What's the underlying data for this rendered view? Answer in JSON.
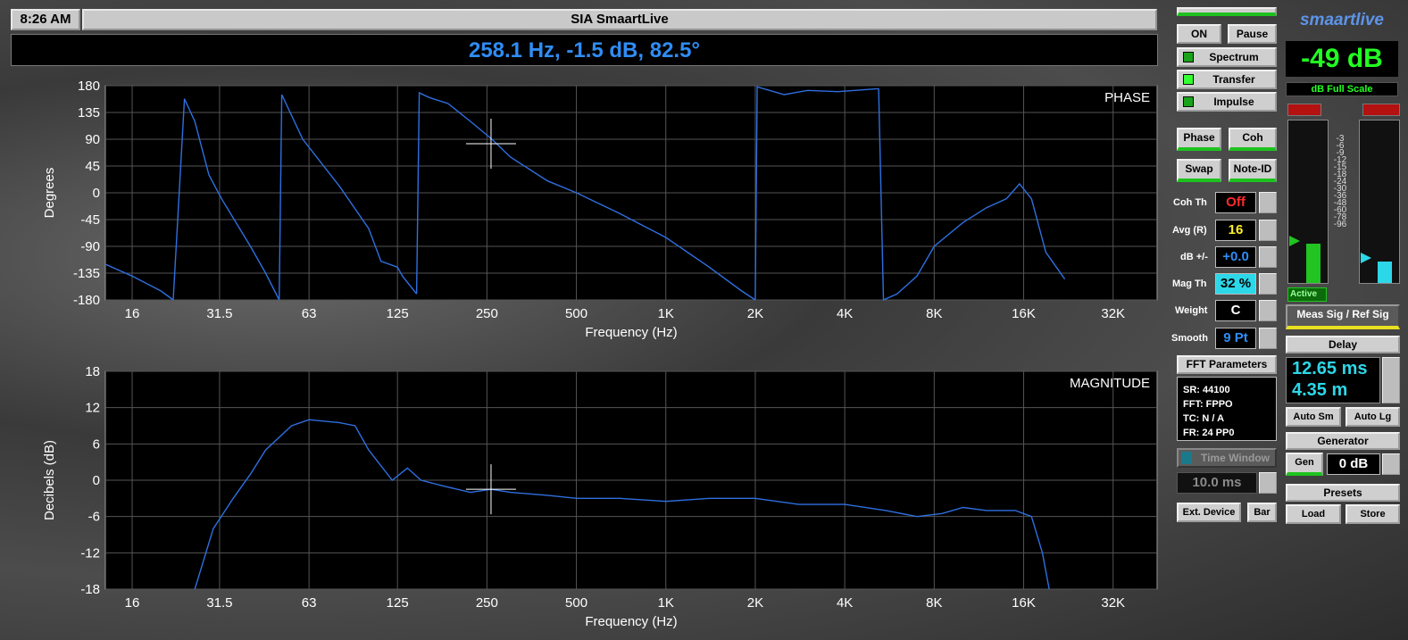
{
  "window": {
    "clock": "8:26 AM",
    "title": "SIA SmaartLive"
  },
  "cursor_readout": "258.1 Hz, -1.5 dB, 82.5°",
  "plots": {
    "phase": {
      "label": "PHASE",
      "ylabel": "Degrees",
      "xlabel": "Frequency (Hz)",
      "yticks": [
        "180",
        "135",
        "90",
        "45",
        "0",
        "-45",
        "-90",
        "-135",
        "-180"
      ],
      "xticks": [
        "16",
        "31.5",
        "63",
        "125",
        "250",
        "500",
        "1K",
        "2K",
        "4K",
        "8K",
        "16K",
        "32K"
      ]
    },
    "magnitude": {
      "label": "MAGNITUDE",
      "ylabel": "Decibels (dB)",
      "xlabel": "Frequency (Hz)",
      "yticks": [
        "18",
        "12",
        "6",
        "0",
        "-6",
        "-12",
        "-18"
      ],
      "xticks": [
        "16",
        "31.5",
        "63",
        "125",
        "250",
        "500",
        "1K",
        "2K",
        "4K",
        "8K",
        "16K",
        "32K"
      ]
    }
  },
  "controls": {
    "on": "ON",
    "pause": "Pause",
    "spectrum": "Spectrum",
    "transfer": "Transfer",
    "impulse": "Impulse",
    "phase": "Phase",
    "coh": "Coh",
    "swap": "Swap",
    "note_id": "Note-ID",
    "coh_th_label": "Coh Th",
    "coh_th_value": "Off",
    "avg_label": "Avg (R)",
    "avg_value": "16",
    "db_label": "dB +/-",
    "db_value": "+0.0",
    "mag_th_label": "Mag Th",
    "mag_th_value": "32 %",
    "weight_label": "Weight",
    "weight_value": "C",
    "smooth_label": "Smooth",
    "smooth_value": "9 Pt",
    "fft_header": "FFT Parameters",
    "fft_lines": [
      "SR: 44100",
      "FFT: FPPO",
      "TC: N / A",
      "FR: 24 PP0"
    ],
    "time_window": "Time Window",
    "time_window_value": "10.0 ms",
    "ext_device": "Ext. Device",
    "bar": "Bar"
  },
  "right_panel": {
    "logo": "smaartlive",
    "level": "-49 dB",
    "level_caption": "dB Full Scale",
    "meter_scale": [
      "-3",
      "-6",
      "-9",
      "-12",
      "-15",
      "-18",
      "-24",
      "-30",
      "-36",
      "-48",
      "-60",
      "-78",
      "-96"
    ],
    "active": "Active",
    "meas_ref": "Meas Sig / Ref Sig",
    "delay_header": "Delay",
    "delay_ms": "12.65 ms",
    "delay_m": "4.35 m",
    "auto_sm": "Auto Sm",
    "auto_lg": "Auto Lg",
    "generator_header": "Generator",
    "gen": "Gen",
    "gen_level": "0 dB",
    "presets_header": "Presets",
    "load": "Load",
    "store": "Store"
  },
  "colors": {
    "trace": "#2f6fe0",
    "readout": "#2f8df5",
    "led_green": "#34ff34"
  },
  "chart_data": [
    {
      "type": "line",
      "title": "PHASE",
      "xlabel": "Frequency (Hz)",
      "ylabel": "Degrees",
      "x_scale": "log",
      "xlim": [
        13,
        45000
      ],
      "ylim": [
        -180,
        180
      ],
      "x_tick_labels": [
        "16",
        "31.5",
        "63",
        "125",
        "250",
        "500",
        "1K",
        "2K",
        "4K",
        "8K",
        "16K",
        "32K"
      ],
      "grid": true,
      "segments": [
        [
          [
            13,
            -120
          ],
          [
            16,
            -140
          ],
          [
            20,
            -165
          ],
          [
            22,
            -180
          ]
        ],
        [
          [
            22,
            -180
          ],
          [
            24,
            158
          ],
          [
            26,
            120
          ],
          [
            29,
            30
          ],
          [
            32,
            -10
          ],
          [
            40,
            -90
          ],
          [
            45,
            -135
          ],
          [
            50,
            -180
          ]
        ],
        [
          [
            50,
            -180
          ],
          [
            51,
            165
          ],
          [
            60,
            90
          ],
          [
            80,
            10
          ],
          [
            100,
            -60
          ],
          [
            110,
            -115
          ],
          [
            125,
            -125
          ],
          [
            130,
            -140
          ],
          [
            145,
            -170
          ]
        ],
        [
          [
            145,
            -170
          ],
          [
            148,
            168
          ],
          [
            160,
            160
          ],
          [
            185,
            150
          ],
          [
            220,
            120
          ],
          [
            260,
            90
          ],
          [
            300,
            60
          ],
          [
            400,
            20
          ],
          [
            500,
            0
          ],
          [
            700,
            -35
          ],
          [
            1000,
            -75
          ],
          [
            1400,
            -125
          ],
          [
            1800,
            -165
          ],
          [
            2000,
            -180
          ]
        ],
        [
          [
            2000,
            -180
          ],
          [
            2030,
            178
          ],
          [
            2500,
            165
          ],
          [
            3000,
            172
          ],
          [
            3800,
            170
          ],
          [
            5200,
            175
          ]
        ],
        [
          [
            5200,
            175
          ],
          [
            5400,
            -180
          ],
          [
            6000,
            -170
          ],
          [
            7000,
            -140
          ],
          [
            8000,
            -90
          ],
          [
            10000,
            -50
          ],
          [
            12000,
            -25
          ],
          [
            14000,
            -10
          ],
          [
            15500,
            15
          ],
          [
            17000,
            -10
          ],
          [
            19000,
            -100
          ],
          [
            22000,
            -145
          ]
        ]
      ]
    },
    {
      "type": "line",
      "title": "MAGNITUDE",
      "xlabel": "Frequency (Hz)",
      "ylabel": "Decibels (dB)",
      "x_scale": "log",
      "xlim": [
        13,
        45000
      ],
      "ylim": [
        -18,
        18
      ],
      "x_tick_labels": [
        "16",
        "31.5",
        "63",
        "125",
        "250",
        "500",
        "1K",
        "2K",
        "4K",
        "8K",
        "16K",
        "32K"
      ],
      "grid": true,
      "points": [
        [
          26,
          -18
        ],
        [
          30,
          -8
        ],
        [
          35,
          -3
        ],
        [
          40,
          1
        ],
        [
          45,
          5
        ],
        [
          55,
          9
        ],
        [
          63,
          10
        ],
        [
          80,
          9.5
        ],
        [
          90,
          9
        ],
        [
          100,
          5
        ],
        [
          120,
          0
        ],
        [
          135,
          2
        ],
        [
          150,
          0
        ],
        [
          180,
          -1
        ],
        [
          220,
          -2
        ],
        [
          258,
          -1.5
        ],
        [
          300,
          -2
        ],
        [
          400,
          -2.5
        ],
        [
          500,
          -3
        ],
        [
          700,
          -3
        ],
        [
          1000,
          -3.5
        ],
        [
          1400,
          -3
        ],
        [
          2000,
          -3
        ],
        [
          2800,
          -4
        ],
        [
          4000,
          -4
        ],
        [
          5500,
          -5
        ],
        [
          7000,
          -6
        ],
        [
          8500,
          -5.5
        ],
        [
          10000,
          -4.5
        ],
        [
          12000,
          -5
        ],
        [
          15000,
          -5
        ],
        [
          17000,
          -6
        ],
        [
          18500,
          -12
        ],
        [
          19500,
          -18
        ]
      ]
    }
  ]
}
